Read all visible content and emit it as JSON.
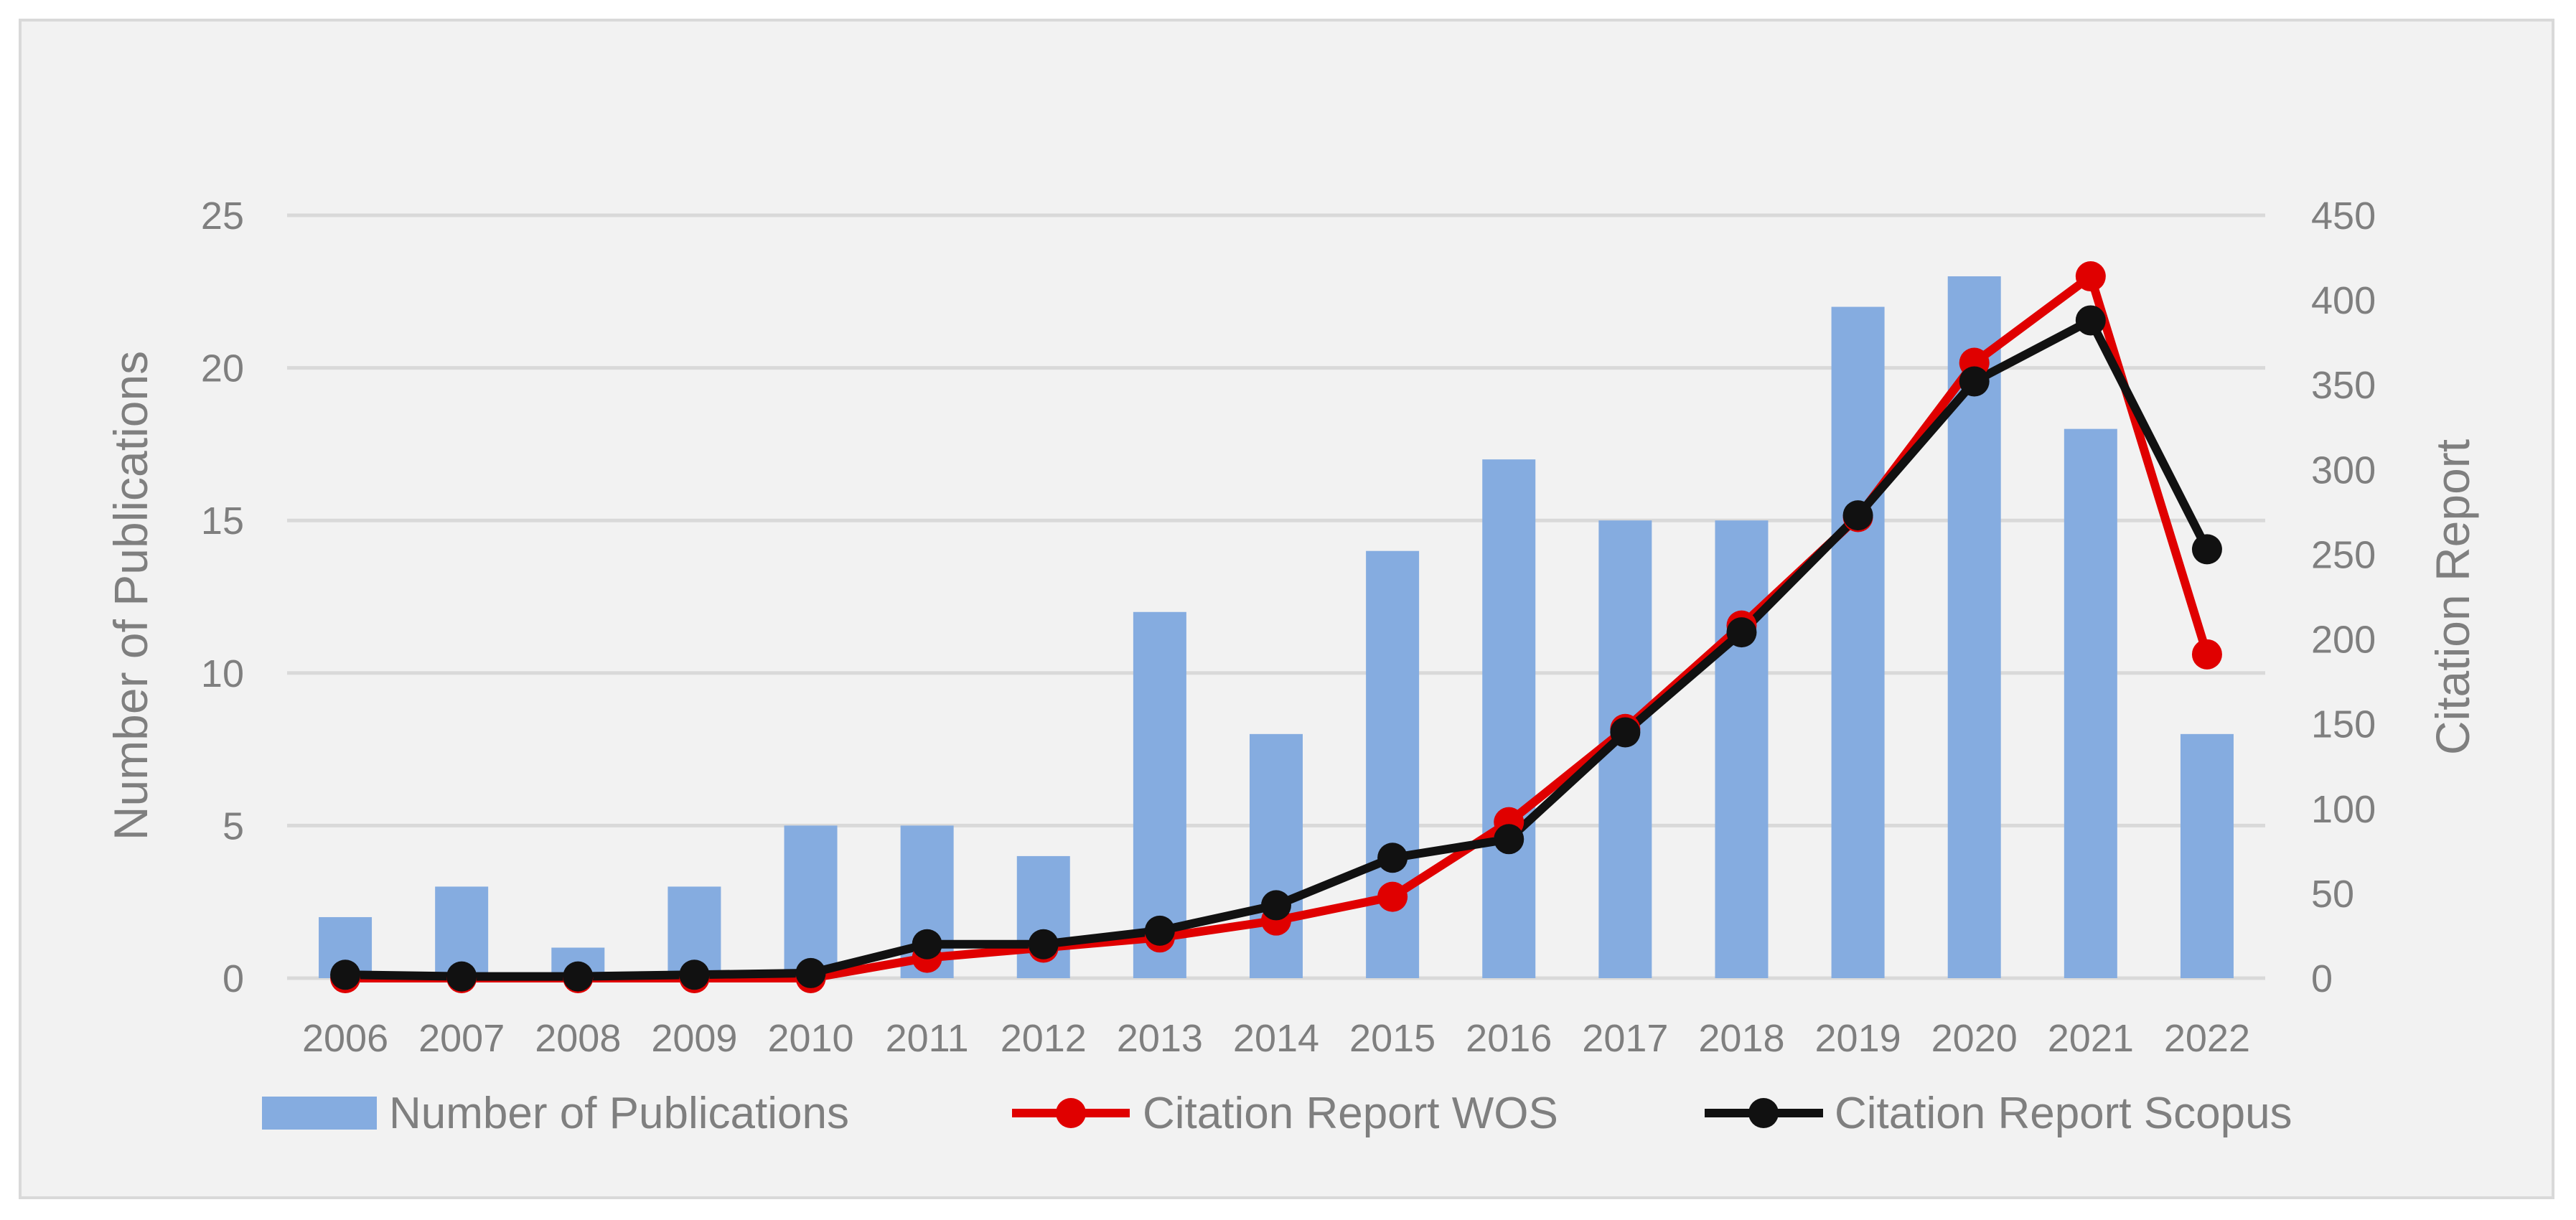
{
  "chart_data": {
    "type": "bar",
    "title": "",
    "categories": [
      "2006",
      "2007",
      "2008",
      "2009",
      "2010",
      "2011",
      "2012",
      "2013",
      "2014",
      "2015",
      "2016",
      "2017",
      "2018",
      "2019",
      "2020",
      "2021",
      "2022"
    ],
    "series": [
      {
        "name": "Number of Publications",
        "type": "bar",
        "axis": "left",
        "color": "#85ace0",
        "values": [
          2,
          3,
          1,
          3,
          5,
          5,
          4,
          12,
          8,
          14,
          17,
          15,
          15,
          22,
          23,
          18,
          8
        ]
      },
      {
        "name": "Citation Report WOS",
        "type": "line",
        "axis": "right",
        "color": "#e00000",
        "values": [
          0,
          0,
          0,
          0,
          0,
          12,
          18,
          24,
          34,
          48,
          92,
          147,
          208,
          272,
          363,
          414,
          191
        ]
      },
      {
        "name": "Citation Report Scopus",
        "type": "line",
        "axis": "right",
        "color": "#111111",
        "values": [
          2,
          1,
          1,
          2,
          3,
          20,
          20,
          28,
          43,
          71,
          82,
          145,
          204,
          273,
          352,
          388,
          253
        ]
      }
    ],
    "ylabel": "Number of Publications",
    "ylim": [
      0,
      25
    ],
    "yticks": [
      "0",
      "5",
      "10",
      "15",
      "20",
      "25"
    ],
    "y2label": "Citation Report",
    "y2lim": [
      0,
      450
    ],
    "y2ticks": [
      "0",
      "50",
      "100",
      "150",
      "200",
      "250",
      "300",
      "350",
      "400",
      "450"
    ],
    "grid": true,
    "legend_position": "bottom"
  }
}
